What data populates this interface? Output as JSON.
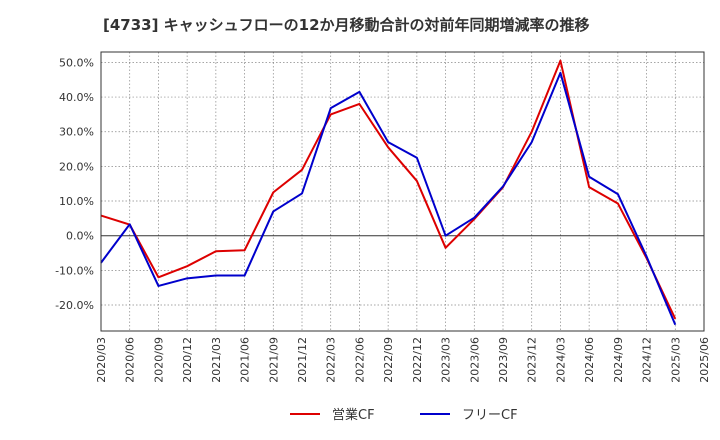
{
  "chart_data": {
    "type": "line",
    "title": "[4733]  キャッシュフローの12か月移動合計の対前年同期増減率の推移",
    "xlabel": "",
    "ylabel": "",
    "ylim": [
      -27.5,
      53
    ],
    "yticks": [
      -20,
      -10,
      0,
      10,
      20,
      30,
      40,
      50
    ],
    "ytick_labels": [
      "-20.0%",
      "-10.0%",
      "0.0%",
      "10.0%",
      "20.0%",
      "30.0%",
      "40.0%",
      "50.0%"
    ],
    "grid": true,
    "legend_position": "bottom-center",
    "x": [
      "2020/03",
      "2020/06",
      "2020/09",
      "2020/12",
      "2021/03",
      "2021/06",
      "2021/09",
      "2021/12",
      "2022/03",
      "2022/06",
      "2022/09",
      "2022/12",
      "2023/03",
      "2023/06",
      "2023/09",
      "2023/12",
      "2024/03",
      "2024/06",
      "2024/09",
      "2024/12",
      "2025/03",
      "2025/06"
    ],
    "series": [
      {
        "name": "営業CF",
        "color": "#dd0000",
        "values": [
          5.8,
          3.2,
          -12.0,
          -8.8,
          -4.5,
          -4.2,
          12.5,
          19.0,
          35.0,
          38.0,
          25.5,
          15.8,
          -3.5,
          4.8,
          14.0,
          30.0,
          50.5,
          14.0,
          9.3,
          -6.5,
          -24.0,
          null
        ]
      },
      {
        "name": "フリーCF",
        "color": "#0000cc",
        "values": [
          -7.8,
          3.3,
          -14.5,
          -12.3,
          -11.5,
          -11.5,
          7.0,
          12.2,
          36.8,
          41.5,
          27.0,
          22.5,
          0.0,
          5.2,
          14.2,
          27.0,
          47.0,
          17.0,
          12.0,
          -6.0,
          -25.7,
          null
        ]
      }
    ]
  }
}
